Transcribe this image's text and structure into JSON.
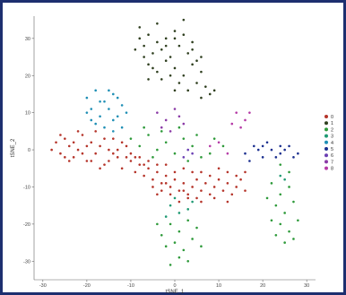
{
  "chart_data": {
    "type": "scatter",
    "title": "",
    "xlabel": "tSNE_1",
    "ylabel": "tSNE_2",
    "xlim": [
      -32,
      32
    ],
    "ylim": [
      -35,
      36
    ],
    "x_ticks": [
      "-30",
      "-20",
      "-10",
      "0",
      "10",
      "20",
      "30"
    ],
    "y_ticks": [
      "30",
      "20",
      "10",
      "0",
      "-10",
      "-20",
      "-30"
    ],
    "x_tick_values": [
      -30,
      -20,
      -10,
      0,
      10,
      20,
      30
    ],
    "y_tick_values": [
      30,
      20,
      10,
      0,
      -10,
      -20,
      -30
    ],
    "legend_position": "right",
    "grid": false,
    "series": [
      {
        "name": "0",
        "color": "#b5342a",
        "points": [
          [
            -28,
            0
          ],
          [
            -27,
            2
          ],
          [
            -26,
            -1
          ],
          [
            -25,
            3
          ],
          [
            -24,
            1
          ],
          [
            -23,
            -2
          ],
          [
            -22,
            0
          ],
          [
            -21,
            4
          ],
          [
            -20,
            -3
          ],
          [
            -19,
            2
          ],
          [
            -18,
            -1
          ],
          [
            -17,
            1
          ],
          [
            -16,
            -4
          ],
          [
            -15,
            0
          ],
          [
            -14,
            3
          ],
          [
            -13,
            -2
          ],
          [
            -12,
            -5
          ],
          [
            -11,
            1
          ],
          [
            -10,
            -3
          ],
          [
            -9,
            -6
          ],
          [
            -8,
            -4
          ],
          [
            -7,
            -7
          ],
          [
            -6,
            -5
          ],
          [
            -5,
            -8
          ],
          [
            -4,
            -6
          ],
          [
            -3,
            -9
          ],
          [
            -2,
            -7
          ],
          [
            -1,
            -10
          ],
          [
            0,
            -8
          ],
          [
            1,
            -11
          ],
          [
            2,
            -9
          ],
          [
            3,
            -12
          ],
          [
            4,
            -10
          ],
          [
            5,
            -8
          ],
          [
            6,
            -11
          ],
          [
            7,
            -9
          ],
          [
            8,
            -12
          ],
          [
            9,
            -10
          ],
          [
            10,
            -8
          ],
          [
            11,
            -11
          ],
          [
            12,
            -9
          ],
          [
            13,
            -12
          ],
          [
            14,
            -10
          ],
          [
            15,
            -8
          ],
          [
            16,
            -11
          ],
          [
            -1,
            -12
          ],
          [
            1,
            -14
          ],
          [
            3,
            -13
          ],
          [
            -3,
            -11
          ],
          [
            5,
            -13
          ],
          [
            -5,
            -10
          ],
          [
            0,
            -6
          ],
          [
            2,
            -5
          ],
          [
            -2,
            -4
          ],
          [
            4,
            -6
          ],
          [
            -26,
            4
          ],
          [
            -24,
            -3
          ],
          [
            -22,
            5
          ],
          [
            -20,
            1
          ],
          [
            -18,
            5
          ],
          [
            -16,
            3
          ],
          [
            -14,
            -1
          ],
          [
            -12,
            2
          ],
          [
            -10,
            -1
          ],
          [
            -8,
            -2
          ],
          [
            -6,
            -3
          ],
          [
            -4,
            -4
          ],
          [
            -25,
            -2
          ],
          [
            -23,
            2
          ],
          [
            -21,
            -1
          ],
          [
            -19,
            -3
          ],
          [
            -17,
            -5
          ],
          [
            -15,
            -3
          ],
          [
            -13,
            0
          ],
          [
            -11,
            -2
          ],
          [
            6,
            -6
          ],
          [
            8,
            -7
          ],
          [
            10,
            -5
          ],
          [
            12,
            -6
          ],
          [
            14,
            -7
          ],
          [
            16,
            -6
          ],
          [
            -7,
            -4
          ],
          [
            -9,
            -2
          ],
          [
            -2,
            -9
          ],
          [
            2,
            -11
          ],
          [
            6,
            -14
          ],
          [
            9,
            -13
          ],
          [
            12,
            -14
          ],
          [
            -4,
            -12
          ]
        ]
      },
      {
        "name": "1",
        "color": "#2f3f1f",
        "points": [
          [
            -8,
            33
          ],
          [
            -6,
            31
          ],
          [
            -4,
            34
          ],
          [
            -2,
            30
          ],
          [
            0,
            32
          ],
          [
            2,
            35
          ],
          [
            4,
            29
          ],
          [
            -7,
            28
          ],
          [
            -5,
            26
          ],
          [
            -3,
            27
          ],
          [
            -1,
            25
          ],
          [
            1,
            28
          ],
          [
            3,
            26
          ],
          [
            5,
            24
          ],
          [
            -6,
            23
          ],
          [
            -4,
            21
          ],
          [
            -2,
            24
          ],
          [
            0,
            22
          ],
          [
            2,
            20
          ],
          [
            4,
            23
          ],
          [
            6,
            21
          ],
          [
            -7,
            25
          ],
          [
            -3,
            19
          ],
          [
            1,
            18
          ],
          [
            5,
            18
          ],
          [
            7,
            17
          ],
          [
            8,
            15
          ],
          [
            6,
            14
          ],
          [
            3,
            16
          ],
          [
            -1,
            20
          ],
          [
            -5,
            22
          ],
          [
            -8,
            30
          ],
          [
            0,
            30
          ],
          [
            -2,
            28
          ],
          [
            2,
            31
          ],
          [
            -4,
            29
          ],
          [
            4,
            27
          ],
          [
            6,
            25
          ],
          [
            -9,
            27
          ],
          [
            -6,
            19
          ],
          [
            0,
            16
          ],
          [
            9,
            16
          ]
        ]
      },
      {
        "name": "2",
        "color": "#2e9a3a",
        "points": [
          [
            -10,
            3
          ],
          [
            -8,
            1
          ],
          [
            -6,
            4
          ],
          [
            -4,
            0
          ],
          [
            -2,
            2
          ],
          [
            0,
            -1
          ],
          [
            2,
            3
          ],
          [
            4,
            1
          ],
          [
            6,
            -2
          ],
          [
            -7,
            6
          ],
          [
            -3,
            5
          ],
          [
            1,
            6
          ],
          [
            5,
            4
          ],
          [
            -5,
            -2
          ],
          [
            3,
            -3
          ],
          [
            -1,
            -20
          ],
          [
            1,
            -22
          ],
          [
            3,
            -19
          ],
          [
            5,
            -21
          ],
          [
            -3,
            -23
          ],
          [
            0,
            -25
          ],
          [
            2,
            -27
          ],
          [
            4,
            -24
          ],
          [
            -2,
            -26
          ],
          [
            1,
            -29
          ],
          [
            3,
            -30
          ],
          [
            -1,
            -31
          ],
          [
            6,
            -26
          ],
          [
            -4,
            -20
          ],
          [
            22,
            -9
          ],
          [
            24,
            -12
          ],
          [
            26,
            -10
          ],
          [
            23,
            -15
          ],
          [
            25,
            -17
          ],
          [
            27,
            -14
          ],
          [
            24,
            -20
          ],
          [
            26,
            -22
          ],
          [
            22,
            -19
          ],
          [
            25,
            -25
          ],
          [
            27,
            -24
          ],
          [
            23,
            -23
          ],
          [
            28,
            -19
          ],
          [
            21,
            -13
          ],
          [
            26,
            -6
          ],
          [
            24,
            -4
          ],
          [
            9,
            3
          ],
          [
            11,
            1
          ],
          [
            8,
            -1
          ]
        ]
      },
      {
        "name": "3",
        "color": "#1f9a73",
        "points": [
          [
            -1,
            -15
          ],
          [
            1,
            -17
          ],
          [
            3,
            -16
          ],
          [
            -2,
            -18
          ],
          [
            4,
            -14
          ],
          [
            0,
            -13
          ],
          [
            24,
            -7
          ],
          [
            25,
            -8
          ]
        ]
      },
      {
        "name": "4",
        "color": "#1f8fb5",
        "points": [
          [
            -20,
            14
          ],
          [
            -18,
            16
          ],
          [
            -16,
            13
          ],
          [
            -14,
            15
          ],
          [
            -12,
            12
          ],
          [
            -19,
            11
          ],
          [
            -17,
            9
          ],
          [
            -15,
            11
          ],
          [
            -13,
            9
          ],
          [
            -11,
            10
          ],
          [
            -18,
            7
          ],
          [
            -16,
            6
          ],
          [
            -14,
            8
          ],
          [
            -12,
            6
          ],
          [
            -20,
            10
          ],
          [
            -17,
            13
          ],
          [
            -15,
            16
          ],
          [
            -13,
            14
          ],
          [
            -19,
            8
          ],
          [
            -14,
            5
          ]
        ]
      },
      {
        "name": "5",
        "color": "#1b2f8f",
        "points": [
          [
            16,
            -1
          ],
          [
            18,
            1
          ],
          [
            20,
            -2
          ],
          [
            22,
            0
          ],
          [
            24,
            -1
          ],
          [
            26,
            1
          ],
          [
            28,
            -1
          ],
          [
            17,
            -3
          ],
          [
            19,
            0
          ],
          [
            21,
            2
          ],
          [
            23,
            -2
          ],
          [
            25,
            0
          ],
          [
            27,
            -2
          ],
          [
            20,
            1
          ],
          [
            24,
            1
          ]
        ]
      },
      {
        "name": "6",
        "color": "#6b3fb3",
        "points": [
          [
            2,
            -2
          ],
          [
            4,
            -1
          ],
          [
            3,
            0
          ]
        ]
      },
      {
        "name": "7",
        "color": "#8a3aa6",
        "points": [
          [
            -4,
            10
          ],
          [
            -2,
            8
          ],
          [
            0,
            11
          ],
          [
            2,
            7
          ],
          [
            -3,
            6
          ],
          [
            1,
            9
          ],
          [
            -1,
            5
          ]
        ]
      },
      {
        "name": "8",
        "color": "#b53aa6",
        "points": [
          [
            14,
            10
          ],
          [
            16,
            8
          ],
          [
            15,
            6
          ],
          [
            13,
            7
          ],
          [
            17,
            10
          ],
          [
            8,
            1
          ],
          [
            10,
            2
          ],
          [
            12,
            -1
          ]
        ]
      }
    ],
    "legend": [
      "0",
      "1",
      "2",
      "3",
      "4",
      "5",
      "6",
      "7",
      "8"
    ]
  }
}
